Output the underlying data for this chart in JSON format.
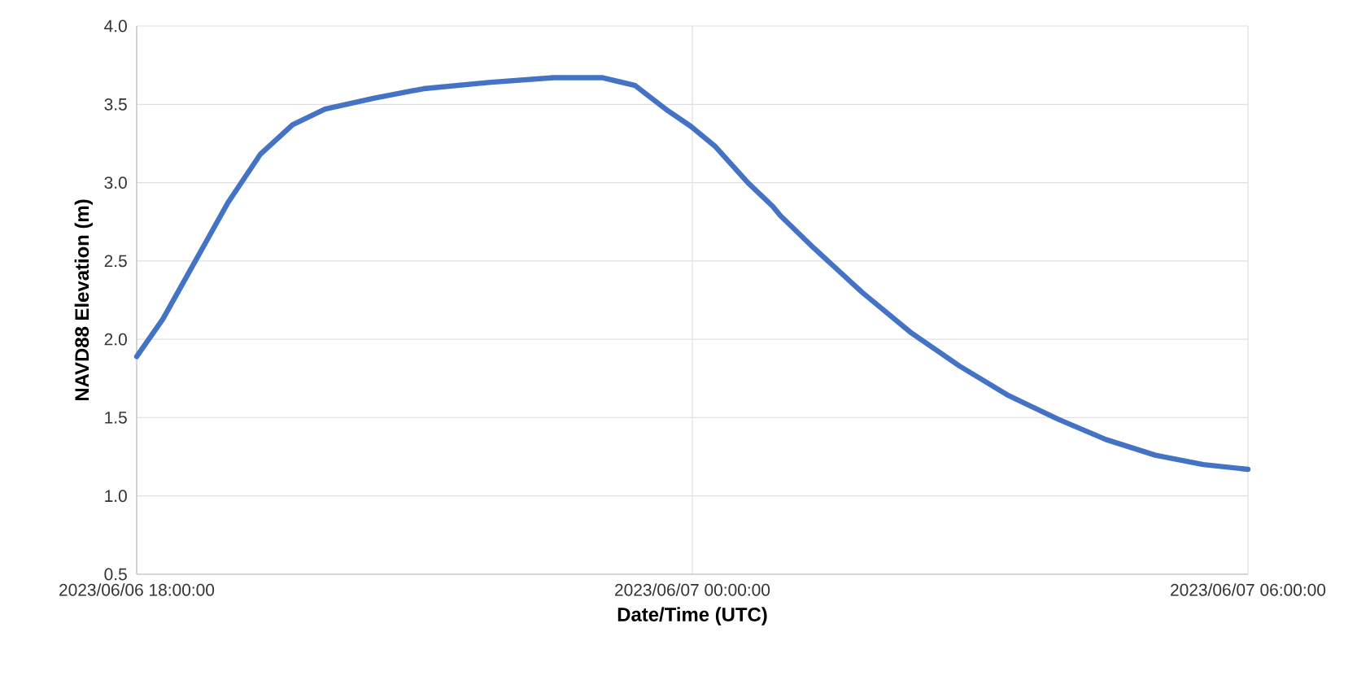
{
  "chart_data": {
    "type": "line",
    "xlabel": "Date/Time (UTC)",
    "ylabel": "NAVD88 Elevation (m)",
    "x": [
      "2023-06-06T18:00",
      "2023-06-06T18:17",
      "2023-06-06T18:38",
      "2023-06-06T18:59",
      "2023-06-06T19:20",
      "2023-06-06T19:41",
      "2023-06-06T20:02",
      "2023-06-06T20:34",
      "2023-06-06T21:06",
      "2023-06-06T21:48",
      "2023-06-06T22:30",
      "2023-06-06T23:02",
      "2023-06-06T23:23",
      "2023-06-06T23:44",
      "2023-06-06T23:59",
      "2023-06-07T00:15",
      "2023-06-07T00:36",
      "2023-06-07T00:52",
      "2023-06-07T00:57",
      "2023-06-07T01:19",
      "2023-06-07T01:50",
      "2023-06-07T02:22",
      "2023-06-07T02:53",
      "2023-06-07T03:25",
      "2023-06-07T03:57",
      "2023-06-07T04:28",
      "2023-06-07T05:00",
      "2023-06-07T05:31",
      "2023-06-07T06:00"
    ],
    "values": [
      1.89,
      2.13,
      2.5,
      2.87,
      3.18,
      3.37,
      3.47,
      3.54,
      3.6,
      3.64,
      3.67,
      3.67,
      3.62,
      3.46,
      3.36,
      3.23,
      3.0,
      2.85,
      2.79,
      2.58,
      2.3,
      2.04,
      1.83,
      1.64,
      1.49,
      1.36,
      1.26,
      1.2,
      1.17
    ],
    "color": "#4472c4",
    "xlim": [
      "2023-06-06T18:00",
      "2023-06-07T06:00"
    ],
    "xticks": [
      {
        "value": "2023-06-06T18:00",
        "label": "2023/06/06 18:00:00"
      },
      {
        "value": "2023-06-07T00:00",
        "label": "2023/06/07 00:00:00"
      },
      {
        "value": "2023-06-07T06:00",
        "label": "2023/06/07 06:00:00"
      }
    ],
    "ylim": [
      0.5,
      4.0
    ],
    "yticks": [
      0.5,
      {
        "value": 1.0,
        "label": "1.0"
      },
      1.5,
      {
        "value": 2.0,
        "label": "2.0"
      },
      2.5,
      {
        "value": 3.0,
        "label": "3.0"
      },
      3.5,
      {
        "value": 4.0,
        "label": "4.0"
      }
    ],
    "grid": true
  }
}
